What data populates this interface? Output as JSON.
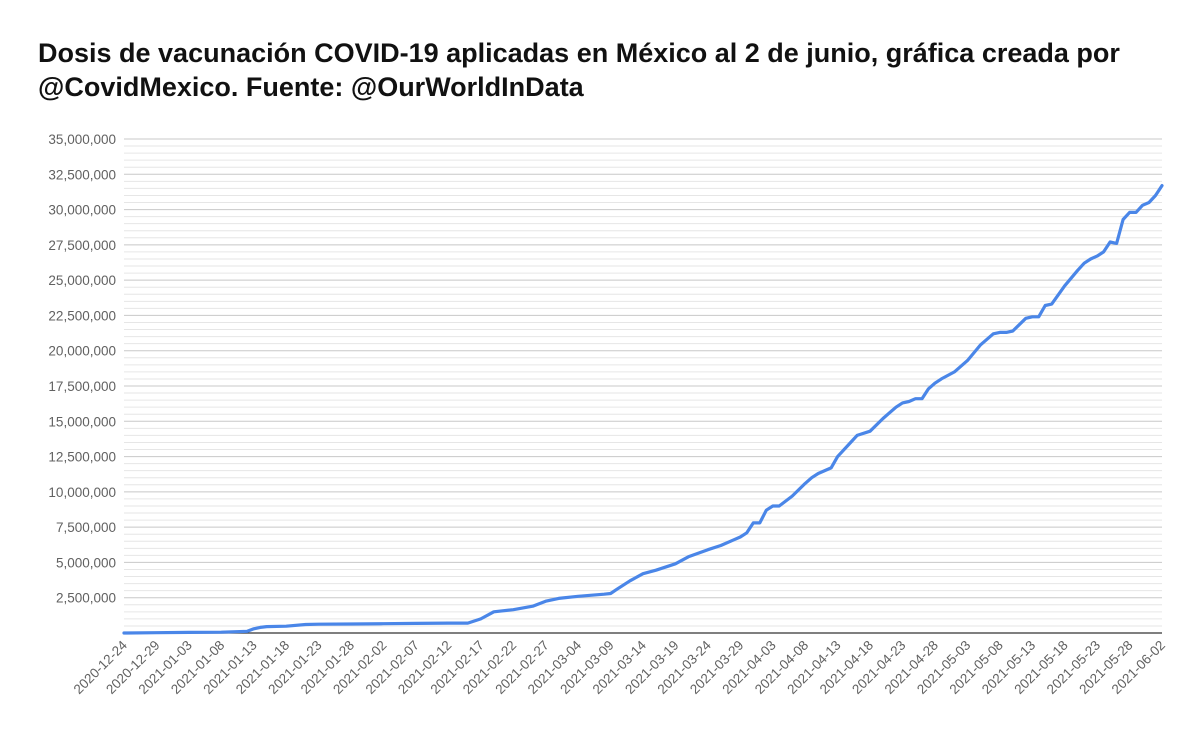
{
  "chart_data": {
    "type": "line",
    "title": "Dosis de vacunación COVID-19 aplicadas en México al 2 de junio, gráfica creada por @CovidMexico. Fuente: @OurWorldInData",
    "xlabel": "",
    "ylabel": "",
    "ylim": [
      0,
      35000000
    ],
    "y_ticks": [
      2500000,
      5000000,
      7500000,
      10000000,
      12500000,
      15000000,
      17500000,
      20000000,
      22500000,
      25000000,
      27500000,
      30000000,
      32500000,
      35000000
    ],
    "y_tick_labels": [
      "2,500,000",
      "5,000,000",
      "7,500,000",
      "10,000,000",
      "12,500,000",
      "15,000,000",
      "17,500,000",
      "20,000,000",
      "22,500,000",
      "25,000,000",
      "27,500,000",
      "30,000,000",
      "32,500,000",
      "35,000,000"
    ],
    "x_tick_labels": [
      "2020-12-24",
      "2020-12-29",
      "2021-01-03",
      "2021-01-08",
      "2021-01-13",
      "2021-01-18",
      "2021-01-23",
      "2021-01-28",
      "2021-02-02",
      "2021-02-07",
      "2021-02-12",
      "2021-02-17",
      "2021-02-22",
      "2021-02-27",
      "2021-03-04",
      "2021-03-09",
      "2021-03-14",
      "2021-03-19",
      "2021-03-24",
      "2021-03-29",
      "2021-04-03",
      "2021-04-08",
      "2021-04-13",
      "2021-04-18",
      "2021-04-23",
      "2021-04-28",
      "2021-05-03",
      "2021-05-08",
      "2021-05-13",
      "2021-05-18",
      "2021-05-23",
      "2021-05-28",
      "2021-06-02"
    ],
    "grid": true,
    "line_color": "#4a86e8",
    "series": [
      {
        "x": [
          "2020-12-24",
          "2020-12-29",
          "2021-01-03",
          "2021-01-08",
          "2021-01-12",
          "2021-01-13",
          "2021-01-14",
          "2021-01-15",
          "2021-01-18",
          "2021-01-21",
          "2021-01-23",
          "2021-01-28",
          "2021-02-02",
          "2021-02-07",
          "2021-02-12",
          "2021-02-15",
          "2021-02-17",
          "2021-02-19",
          "2021-02-22",
          "2021-02-25",
          "2021-02-27",
          "2021-03-01",
          "2021-03-04",
          "2021-03-08",
          "2021-03-09",
          "2021-03-10",
          "2021-03-12",
          "2021-03-14",
          "2021-03-16",
          "2021-03-19",
          "2021-03-21",
          "2021-03-24",
          "2021-03-26",
          "2021-03-28",
          "2021-03-29",
          "2021-03-30",
          "2021-03-31",
          "2021-04-01",
          "2021-04-02",
          "2021-04-03",
          "2021-04-04",
          "2021-04-06",
          "2021-04-08",
          "2021-04-09",
          "2021-04-10",
          "2021-04-12",
          "2021-04-13",
          "2021-04-15",
          "2021-04-16",
          "2021-04-18",
          "2021-04-20",
          "2021-04-22",
          "2021-04-23",
          "2021-04-24",
          "2021-04-25",
          "2021-04-26",
          "2021-04-27",
          "2021-04-28",
          "2021-04-29",
          "2021-05-01",
          "2021-05-03",
          "2021-05-05",
          "2021-05-07",
          "2021-05-08",
          "2021-05-09",
          "2021-05-10",
          "2021-05-12",
          "2021-05-13",
          "2021-05-14",
          "2021-05-15",
          "2021-05-16",
          "2021-05-18",
          "2021-05-20",
          "2021-05-21",
          "2021-05-22",
          "2021-05-23",
          "2021-05-24",
          "2021-05-25",
          "2021-05-26",
          "2021-05-27",
          "2021-05-28",
          "2021-05-29",
          "2021-05-30",
          "2021-05-31",
          "2021-06-01",
          "2021-06-02"
        ],
        "values": [
          0,
          20000,
          40000,
          60000,
          120000,
          300000,
          400000,
          450000,
          480000,
          600000,
          620000,
          640000,
          660000,
          680000,
          700000,
          700000,
          1000000,
          1500000,
          1650000,
          1900000,
          2250000,
          2450000,
          2600000,
          2750000,
          2800000,
          3100000,
          3700000,
          4200000,
          4450000,
          4900000,
          5400000,
          5900000,
          6200000,
          6600000,
          6800000,
          7100000,
          7800000,
          7800000,
          8700000,
          9000000,
          9000000,
          9700000,
          10600000,
          11000000,
          11300000,
          11700000,
          12500000,
          13500000,
          14000000,
          14300000,
          15200000,
          16000000,
          16300000,
          16400000,
          16600000,
          16600000,
          17300000,
          17700000,
          18000000,
          18500000,
          19300000,
          20400000,
          21200000,
          21300000,
          21300000,
          21400000,
          22300000,
          22400000,
          22400000,
          23200000,
          23300000,
          24600000,
          25700000,
          26200000,
          26500000,
          26700000,
          27000000,
          27700000,
          27600000,
          29300000,
          29800000,
          29800000,
          30300000,
          30500000,
          31000000,
          31700000
        ]
      }
    ]
  }
}
